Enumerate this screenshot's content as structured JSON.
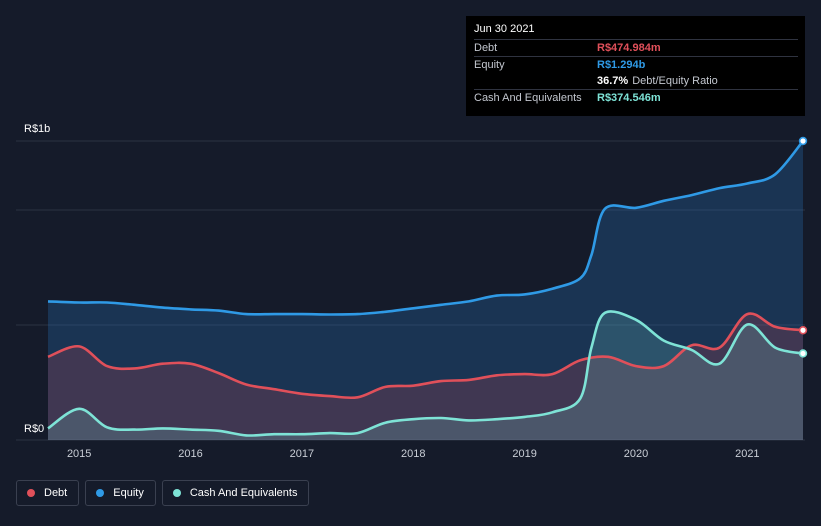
{
  "chart_data": {
    "type": "area",
    "title": "",
    "xlabel": "",
    "ylabel": "",
    "x_ticks": [
      "2015",
      "2016",
      "2017",
      "2018",
      "2019",
      "2020",
      "2021"
    ],
    "y_tick_labels": [
      {
        "value": 1.0,
        "label": "R$1b"
      },
      {
        "value": 0,
        "label": "R$0"
      }
    ],
    "xlim": [
      2014.72,
      2021.5
    ],
    "ylim": [
      0,
      1.3
    ],
    "grid": true,
    "legend_position": "bottom-left",
    "series": [
      {
        "name": "Equity",
        "color": "#2f9ae6",
        "x": [
          2014.72,
          2015.0,
          2015.25,
          2015.5,
          2015.75,
          2016.0,
          2016.25,
          2016.5,
          2016.75,
          2017.0,
          2017.25,
          2017.5,
          2017.75,
          2018.0,
          2018.25,
          2018.5,
          2018.75,
          2019.0,
          2019.25,
          2019.5,
          2019.6,
          2019.72,
          2020.0,
          2020.25,
          2020.5,
          2020.75,
          2021.0,
          2021.25,
          2021.5
        ],
        "values": [
          0.6,
          0.595,
          0.595,
          0.585,
          0.573,
          0.565,
          0.56,
          0.545,
          0.545,
          0.545,
          0.543,
          0.545,
          0.555,
          0.57,
          0.585,
          0.6,
          0.625,
          0.63,
          0.655,
          0.7,
          0.8,
          1.0,
          1.005,
          1.035,
          1.06,
          1.09,
          1.11,
          1.15,
          1.294
        ]
      },
      {
        "name": "Debt",
        "color": "#e0505a",
        "x": [
          2014.72,
          2015.0,
          2015.25,
          2015.5,
          2015.75,
          2016.0,
          2016.25,
          2016.5,
          2016.75,
          2017.0,
          2017.25,
          2017.5,
          2017.75,
          2018.0,
          2018.25,
          2018.5,
          2018.75,
          2019.0,
          2019.25,
          2019.5,
          2019.75,
          2020.0,
          2020.25,
          2020.5,
          2020.75,
          2021.0,
          2021.25,
          2021.5
        ],
        "values": [
          0.36,
          0.405,
          0.32,
          0.31,
          0.33,
          0.33,
          0.29,
          0.24,
          0.22,
          0.2,
          0.19,
          0.185,
          0.23,
          0.235,
          0.255,
          0.26,
          0.28,
          0.285,
          0.285,
          0.345,
          0.36,
          0.32,
          0.32,
          0.41,
          0.4,
          0.545,
          0.49,
          0.475
        ]
      },
      {
        "name": "Cash And Equivalents",
        "color": "#7ee3d6",
        "x": [
          2014.72,
          2015.0,
          2015.25,
          2015.5,
          2015.75,
          2016.0,
          2016.25,
          2016.5,
          2016.75,
          2017.0,
          2017.25,
          2017.5,
          2017.75,
          2018.0,
          2018.25,
          2018.5,
          2018.75,
          2019.0,
          2019.25,
          2019.5,
          2019.6,
          2019.72,
          2020.0,
          2020.25,
          2020.5,
          2020.75,
          2021.0,
          2021.25,
          2021.5
        ],
        "values": [
          0.05,
          0.135,
          0.055,
          0.045,
          0.05,
          0.045,
          0.04,
          0.02,
          0.025,
          0.025,
          0.03,
          0.03,
          0.075,
          0.09,
          0.095,
          0.085,
          0.09,
          0.1,
          0.12,
          0.18,
          0.4,
          0.55,
          0.52,
          0.43,
          0.39,
          0.33,
          0.5,
          0.4,
          0.3745
        ]
      }
    ]
  },
  "tooltip": {
    "date": "Jun 30 2021",
    "debt_label": "Debt",
    "debt_value": "R$474.984m",
    "equity_label": "Equity",
    "equity_value": "R$1.294b",
    "ratio_value": "36.7%",
    "ratio_label": "Debt/Equity Ratio",
    "cash_label": "Cash And Equivalents",
    "cash_value": "R$374.546m"
  },
  "legend": {
    "items": [
      {
        "label": "Debt",
        "color": "#e0505a"
      },
      {
        "label": "Equity",
        "color": "#2f9ae6"
      },
      {
        "label": "Cash And Equivalents",
        "color": "#7ee3d6"
      }
    ]
  }
}
